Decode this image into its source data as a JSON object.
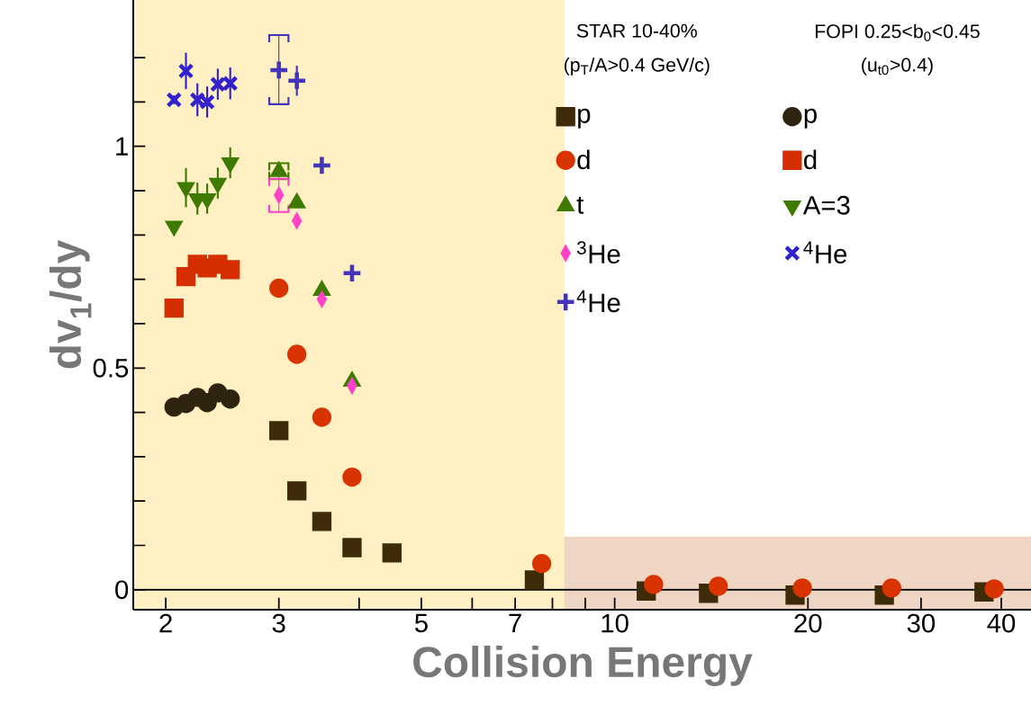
{
  "chart_data": {
    "type": "scatter",
    "xlabel": "Collision Energy",
    "ylabel": "dv$_{1}$/dy",
    "log": "x",
    "xlim": [
      1.78,
      44.5
    ],
    "ylim": [
      -0.045,
      1.33
    ],
    "xticks": [
      2,
      3,
      {
        "value": 4,
        "label": null
      },
      5,
      {
        "value": 6,
        "label": null
      },
      7,
      {
        "value": 8,
        "label": null
      },
      {
        "value": 9,
        "label": null
      },
      10,
      20,
      30,
      40
    ],
    "yticks": [
      0,
      {
        "value": 0.1,
        "label": null
      },
      {
        "value": 0.2,
        "label": null
      },
      {
        "value": 0.3,
        "label": null
      },
      {
        "value": 0.4,
        "label": null
      },
      0.5,
      {
        "value": 0.6,
        "label": null
      },
      {
        "value": 0.7,
        "label": null
      },
      {
        "value": 0.8,
        "label": null
      },
      {
        "value": 0.9,
        "label": null
      },
      1,
      {
        "value": 1.1,
        "label": null
      },
      {
        "value": 1.2,
        "label": null
      }
    ],
    "legend": "top right",
    "annotations": [
      "STAR 10-40%",
      "(p$_{T}$/A>0.4 GeV/c)",
      "FOPI 0.25<b$_{0}$<0.45",
      "(u$_{t0}$>0.4)"
    ],
    "ref_lines": [
      {
        "axis": "y",
        "value": 0,
        "color": "#000000"
      }
    ],
    "bands": [
      {
        "axis": "y",
        "from": -0.045,
        "to": 0.12,
        "color": "#efd5c3"
      },
      {
        "axis": "x",
        "from": 1.78,
        "to": 8.35,
        "color": "#fef0c2"
      }
    ],
    "series": [
      {
        "name": "p",
        "color": "#3d2b0a",
        "marker": "square",
        "x": [
          3.0,
          3.2,
          3.5,
          3.9,
          4.5,
          7.5,
          11.2,
          14.0,
          19.1,
          26.3,
          37.6
        ],
        "values": [
          0.359,
          0.223,
          0.154,
          0.095,
          0.083,
          0.022,
          -0.003,
          -0.008,
          -0.012,
          -0.012,
          -0.005
        ]
      },
      {
        "name": "d",
        "color": "#d93300",
        "marker": "circle",
        "x": [
          3.0,
          3.2,
          3.5,
          3.9,
          7.7,
          11.5,
          14.5,
          19.6,
          27,
          39
        ],
        "values": [
          0.68,
          0.531,
          0.389,
          0.254,
          0.059,
          0.012,
          0.008,
          0.004,
          0.004,
          0.002
        ]
      },
      {
        "name": "t",
        "color": "#3f7a00",
        "marker": "triangle",
        "x": [
          3.0,
          3.2,
          3.5,
          3.9
        ],
        "values": [
          0.943,
          0.872,
          0.675,
          0.47
        ],
        "errors": [
          [
            0.926,
            0.962
          ],
          null,
          null,
          null
        ]
      },
      {
        "name": "$^{3}$He",
        "color": "#ff40c8",
        "marker": "diamond",
        "x": [
          3.0,
          3.2,
          3.5,
          3.9
        ],
        "values": [
          0.89,
          0.832,
          0.655,
          0.46
        ],
        "errors": [
          [
            0.852,
            0.927
          ],
          null,
          null,
          null
        ]
      },
      {
        "name": "$^{4}$He",
        "color": "#4433bb",
        "marker": "plus",
        "x": [
          3.0,
          3.2,
          3.5,
          3.9
        ],
        "values": [
          1.172,
          1.148,
          0.957,
          0.714
        ],
        "errors": [
          [
            1.095,
            1.251
          ],
          0.034,
          null,
          null
        ]
      },
      {
        "name": "p",
        "color": "#2e2410",
        "marker": "circle",
        "x": [
          2.06,
          2.15,
          2.24,
          2.32,
          2.41,
          2.52
        ],
        "values": [
          0.412,
          0.42,
          0.434,
          0.422,
          0.444,
          0.43
        ]
      },
      {
        "name": "d",
        "color": "#d62e00",
        "marker": "square",
        "x": [
          2.06,
          2.15,
          2.24,
          2.32,
          2.41,
          2.52
        ],
        "values": [
          0.635,
          0.706,
          0.734,
          0.726,
          0.734,
          0.722
        ]
      },
      {
        "name": "A=3",
        "color": "#3f7a00",
        "marker": "triangle-down",
        "x": [
          2.06,
          2.15,
          2.24,
          2.32,
          2.41,
          2.52
        ],
        "values": [
          0.82,
          0.907,
          0.882,
          0.882,
          0.917,
          0.963
        ],
        "errors": [
          null,
          0.044,
          0.036,
          0.034,
          0.035,
          0.035
        ]
      },
      {
        "name": "$^{4}$He",
        "color": "#3322cc",
        "marker": "cross",
        "x": [
          2.06,
          2.15,
          2.24,
          2.32,
          2.41,
          2.52
        ],
        "values": [
          1.105,
          1.17,
          1.105,
          1.1,
          1.14,
          1.142
        ],
        "errors": [
          0.01,
          0.041,
          0.037,
          0.035,
          0.035,
          0.036
        ]
      }
    ]
  }
}
